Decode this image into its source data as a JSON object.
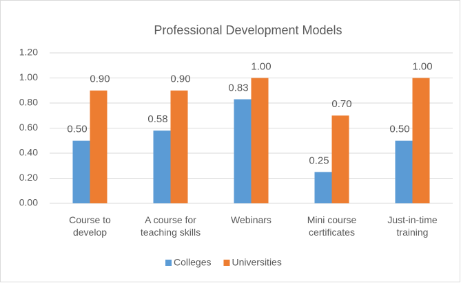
{
  "chart_data": {
    "type": "bar",
    "title": "Professional Development Models",
    "categories": [
      "Course to develop",
      "A course for teaching skills",
      "Webinars",
      "Mini course certificates",
      "Just-in-time training"
    ],
    "series": [
      {
        "name": "Colleges",
        "color": "#5b9bd5",
        "values": [
          0.5,
          0.58,
          0.83,
          0.25,
          0.5
        ],
        "value_labels": [
          "0.50",
          "0.58",
          "0.83",
          "0.25",
          "0.50"
        ]
      },
      {
        "name": "Universities",
        "color": "#ed7d31",
        "values": [
          0.9,
          0.9,
          1.0,
          0.7,
          1.0
        ],
        "value_labels": [
          "0.90",
          "0.90",
          "1.00",
          "0.70",
          "1.00"
        ]
      }
    ],
    "ylim": [
      0,
      1.2
    ],
    "yticks": [
      {
        "value": 0,
        "label": "0.00"
      },
      {
        "value": 0.2,
        "label": "0.20"
      },
      {
        "value": 0.4,
        "label": "0.40"
      },
      {
        "value": 0.6,
        "label": "0.60"
      },
      {
        "value": 0.8,
        "label": "0.80"
      },
      {
        "value": 1.0,
        "label": "1.00"
      },
      {
        "value": 1.2,
        "label": "1.20"
      }
    ],
    "grid": true,
    "legend": "bottom"
  }
}
